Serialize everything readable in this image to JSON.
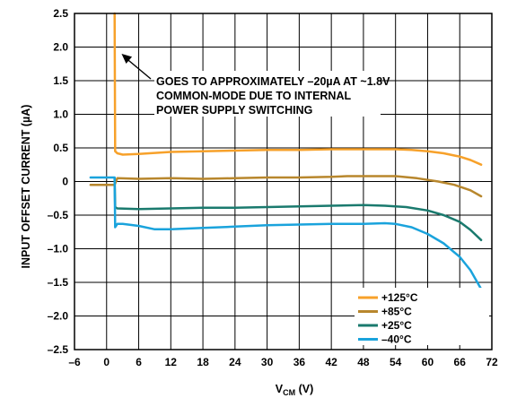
{
  "chart_data": {
    "type": "line",
    "xlabel_main": "V",
    "xlabel_sub": "CM",
    "xlabel_unit": " (V)",
    "ylabel": "INPUT OFFSET CURRENT (µA)",
    "xlim": [
      -6,
      72
    ],
    "ylim": [
      -2.5,
      2.5
    ],
    "x_ticks": [
      -6,
      0,
      6,
      12,
      18,
      24,
      30,
      36,
      42,
      48,
      54,
      60,
      66,
      72
    ],
    "x_tick_labels": [
      "–6",
      "0",
      "6",
      "12",
      "18",
      "24",
      "30",
      "36",
      "42",
      "48",
      "54",
      "60",
      "66",
      "72"
    ],
    "y_ticks": [
      2.5,
      2.0,
      1.5,
      1.0,
      0.5,
      0,
      -0.5,
      -1.0,
      -1.5,
      -2.0,
      -2.5
    ],
    "y_tick_labels": [
      "2.5",
      "2.0",
      "1.5",
      "1.0",
      "0.5",
      "0",
      "–0.5",
      "–1.0",
      "–1.5",
      "–2.0",
      "–2.5"
    ],
    "grid": true,
    "annotation": {
      "lines": [
        "GOES TO APPROXIMATELY –20µA AT ~1.8V",
        "COMMON-MODE DUE TO INTERNAL",
        "POWER SUPPLY SWITCHING"
      ],
      "arrow_to": {
        "x": 2.8,
        "y": 1.9
      }
    },
    "legend_position": "bottom-right",
    "series": [
      {
        "name": "+125°C",
        "color": "#f7a12a",
        "points": [
          [
            1.5,
            2.5
          ],
          [
            1.6,
            0.45
          ],
          [
            2.0,
            0.42
          ],
          [
            3,
            0.4
          ],
          [
            6,
            0.41
          ],
          [
            12,
            0.44
          ],
          [
            18,
            0.45
          ],
          [
            24,
            0.46
          ],
          [
            30,
            0.47
          ],
          [
            36,
            0.47
          ],
          [
            42,
            0.48
          ],
          [
            48,
            0.48
          ],
          [
            54,
            0.48
          ],
          [
            57,
            0.47
          ],
          [
            60,
            0.45
          ],
          [
            63,
            0.42
          ],
          [
            66,
            0.37
          ],
          [
            68,
            0.32
          ],
          [
            70,
            0.25
          ]
        ]
      },
      {
        "name": "+85°C",
        "color": "#b8872d",
        "points": [
          [
            -3,
            -0.05
          ],
          [
            0,
            -0.05
          ],
          [
            1.5,
            -0.05
          ],
          [
            2.0,
            0.05
          ],
          [
            6,
            0.04
          ],
          [
            12,
            0.05
          ],
          [
            18,
            0.04
          ],
          [
            24,
            0.05
          ],
          [
            30,
            0.06
          ],
          [
            36,
            0.06
          ],
          [
            42,
            0.07
          ],
          [
            45,
            0.08
          ],
          [
            48,
            0.08
          ],
          [
            54,
            0.08
          ],
          [
            58,
            0.05
          ],
          [
            62,
            0.0
          ],
          [
            65,
            -0.05
          ],
          [
            68,
            -0.13
          ],
          [
            70,
            -0.22
          ]
        ]
      },
      {
        "name": "+25°C",
        "color": "#1a7a6e",
        "points": [
          [
            1.5,
            0.05
          ],
          [
            1.6,
            -0.38
          ],
          [
            2.0,
            -0.4
          ],
          [
            6,
            -0.41
          ],
          [
            12,
            -0.4
          ],
          [
            18,
            -0.39
          ],
          [
            24,
            -0.39
          ],
          [
            30,
            -0.38
          ],
          [
            36,
            -0.37
          ],
          [
            42,
            -0.36
          ],
          [
            48,
            -0.35
          ],
          [
            52,
            -0.36
          ],
          [
            56,
            -0.38
          ],
          [
            60,
            -0.43
          ],
          [
            63,
            -0.5
          ],
          [
            66,
            -0.6
          ],
          [
            68,
            -0.72
          ],
          [
            70,
            -0.87
          ]
        ]
      },
      {
        "name": "–40°C",
        "color": "#1aa3dc",
        "points": [
          [
            -3,
            0.06
          ],
          [
            0,
            0.06
          ],
          [
            1.5,
            0.06
          ],
          [
            1.6,
            -0.68
          ],
          [
            2.0,
            -0.63
          ],
          [
            3,
            -0.63
          ],
          [
            6,
            -0.66
          ],
          [
            9,
            -0.71
          ],
          [
            12,
            -0.71
          ],
          [
            18,
            -0.69
          ],
          [
            24,
            -0.67
          ],
          [
            30,
            -0.65
          ],
          [
            36,
            -0.64
          ],
          [
            42,
            -0.63
          ],
          [
            48,
            -0.63
          ],
          [
            52,
            -0.62
          ],
          [
            54,
            -0.63
          ],
          [
            57,
            -0.68
          ],
          [
            60,
            -0.78
          ],
          [
            63,
            -0.92
          ],
          [
            66,
            -1.12
          ],
          [
            68,
            -1.32
          ],
          [
            70,
            -1.6
          ]
        ]
      }
    ]
  }
}
